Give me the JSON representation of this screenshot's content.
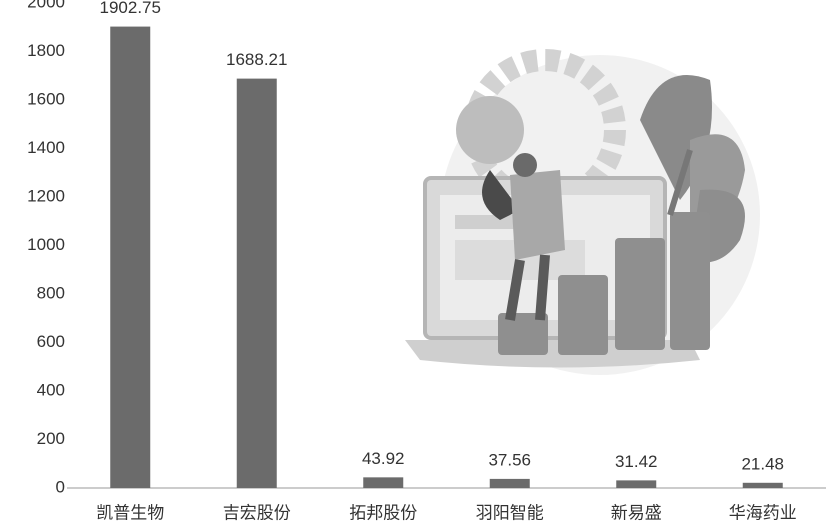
{
  "chart_data": {
    "type": "bar",
    "categories": [
      "凯普生物",
      "吉宏股份",
      "拓邦股份",
      "羽阳智能",
      "新易盛",
      "华海药业"
    ],
    "values": [
      1902.75,
      1688.21,
      43.92,
      37.56,
      31.42,
      21.48
    ],
    "color": "#6b6b6b",
    "ylim": [
      0,
      2000
    ],
    "yticks": [
      0,
      200,
      400,
      600,
      800,
      1000,
      1200,
      1400,
      1600,
      1800,
      2000
    ]
  }
}
